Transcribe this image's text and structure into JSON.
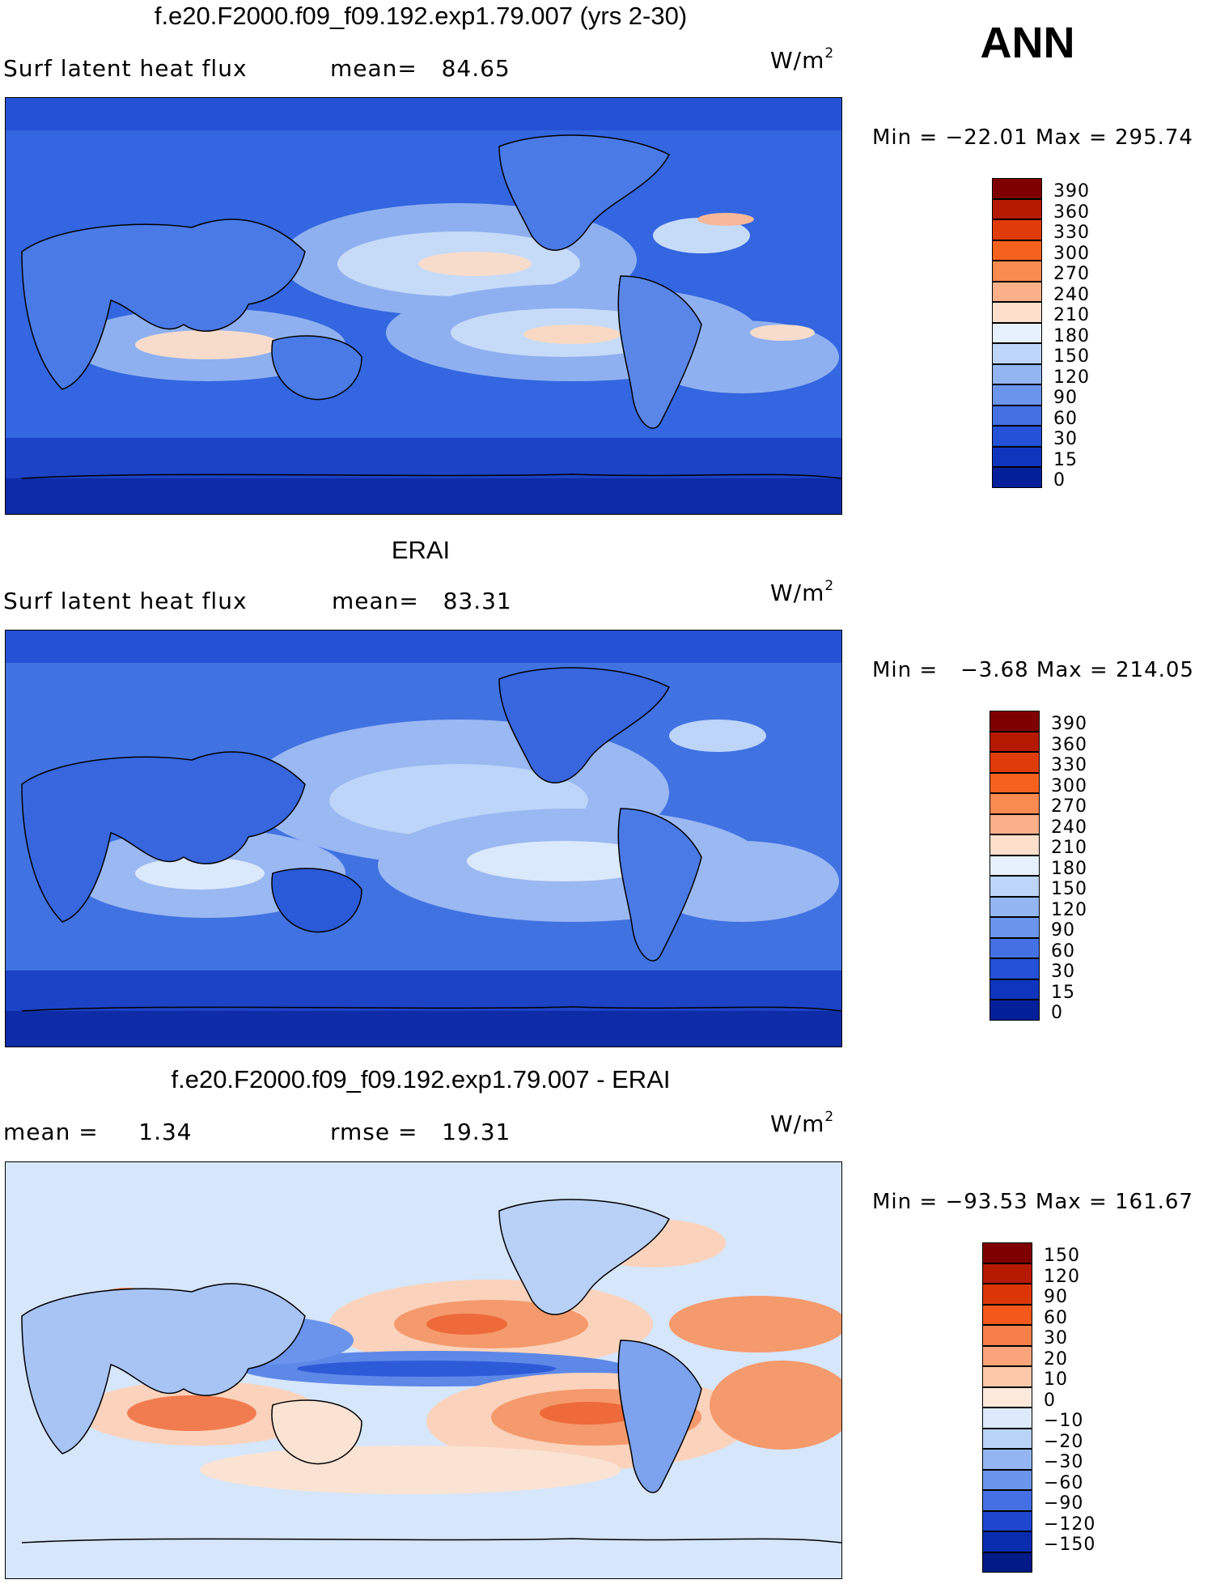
{
  "season": "ANN",
  "panels": [
    {
      "title": "f.e20.F2000.f09_f09.192.exp1.79.007 (yrs 2-30)",
      "left_text": "Surf latent heat flux",
      "mid_text": "mean=   84.65",
      "unit": "W/m",
      "unit_exp": "2",
      "minmax": "Min = −22.01 Max = 295.74",
      "colorbar": {
        "labels": [
          "390",
          "360",
          "330",
          "300",
          "270",
          "240",
          "210",
          "180",
          "150",
          "120",
          "90",
          "60",
          "30",
          "15",
          "0"
        ],
        "colors": [
          "#7f0000",
          "#b51a00",
          "#e03c0a",
          "#f6621d",
          "#f98a50",
          "#fbb08a",
          "#fde0cb",
          "#e6f1fd",
          "#bcd5f8",
          "#93b6f2",
          "#6b94ec",
          "#4470e3",
          "#2451d7",
          "#0f35bf",
          "#03209a"
        ]
      }
    },
    {
      "title": "ERAI",
      "left_text": "Surf latent heat flux",
      "mid_text": "mean=   83.31",
      "unit": "W/m",
      "unit_exp": "2",
      "minmax": "Min =   −3.68 Max = 214.05",
      "colorbar": {
        "labels": [
          "390",
          "360",
          "330",
          "300",
          "270",
          "240",
          "210",
          "180",
          "150",
          "120",
          "90",
          "60",
          "30",
          "15",
          "0"
        ],
        "colors": [
          "#7f0000",
          "#b51a00",
          "#e03c0a",
          "#f6621d",
          "#f98a50",
          "#fbb08a",
          "#fde0cb",
          "#e6f1fd",
          "#bcd5f8",
          "#93b6f2",
          "#6b94ec",
          "#4470e3",
          "#2451d7",
          "#0f35bf",
          "#03209a"
        ]
      }
    },
    {
      "title": "f.e20.F2000.f09_f09.192.exp1.79.007 - ERAI",
      "left_text": "mean =     1.34",
      "mid_text": "rmse =   19.31",
      "unit": "W/m",
      "unit_exp": "2",
      "minmax": "Min = −93.53 Max = 161.67",
      "colorbar": {
        "labels": [
          "150",
          "120",
          "90",
          "60",
          "30",
          "20",
          "10",
          "0",
          "−10",
          "−20",
          "−30",
          "−60",
          "−90",
          "−120",
          "−150"
        ],
        "colors": [
          "#7f0000",
          "#b51a00",
          "#dc3608",
          "#f4581a",
          "#f7804a",
          "#f9a47b",
          "#fbc8a9",
          "#fde9dc",
          "#dceafc",
          "#b9d3f7",
          "#93b6f2",
          "#6b94ec",
          "#4470e3",
          "#1e47d0",
          "#0a2db0",
          "#021a88"
        ]
      }
    }
  ]
}
